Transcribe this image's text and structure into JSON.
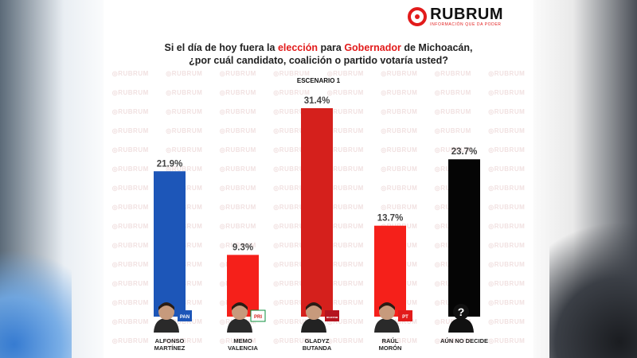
{
  "brand": {
    "name": "RUBRUM",
    "tagline": "INFORMACIÓN QUE DA PODER",
    "watermark": "RUBRUM",
    "accent_color": "#e21b1b"
  },
  "question": {
    "line1_a": "Si el día de hoy fuera la ",
    "line1_b": "elección",
    "line1_c": " para ",
    "line1_d": "Gobernador",
    "line1_e": " de Michoacán,",
    "line2": "¿por cuál candidato, coalición o partido votaría usted?"
  },
  "scenario_label": "ESCENARIO 1",
  "chart_data": {
    "type": "bar",
    "categories": [
      "ALFONSO MARTÍNEZ",
      "MEMO VALENCIA",
      "GLADYZ BUTANDA",
      "RAÚL MORÓN",
      "AÚN NO DECIDE"
    ],
    "values": [
      21.9,
      9.3,
      31.4,
      13.7,
      23.7
    ],
    "value_labels": [
      "21.9%",
      "9.3%",
      "31.4%",
      "13.7%",
      "23.7%"
    ],
    "colors": [
      "#1d56b8",
      "#f5201a",
      "#d5201c",
      "#f5201a",
      "#050505"
    ],
    "ylim": [
      0,
      31.4
    ],
    "grid": false
  },
  "candidates": [
    {
      "first": "ALFONSO",
      "last": "MARTÍNEZ",
      "party_icon": "pan-logo-icon",
      "party_text": "PAN",
      "party_color": "#1d56b8"
    },
    {
      "first": "MEMO",
      "last": "VALENCIA",
      "party_icon": "pri-logo-icon",
      "party_text": "PRI",
      "party_color": "#0c8f3c"
    },
    {
      "first": "GLADYZ",
      "last": "BUTANDA",
      "party_icon": "morena-logo-icon",
      "party_text": "morena",
      "party_color": "#b5141f"
    },
    {
      "first": "RAÚL",
      "last": "MORÓN",
      "party_icon": "pt-verde-logo-icon",
      "party_text": "PT",
      "party_color": "#e21b1b"
    },
    {
      "first": "AÚN NO DECIDE",
      "last": "",
      "party_icon": "question-mark-icon",
      "party_text": "?",
      "party_color": "#111111"
    }
  ]
}
